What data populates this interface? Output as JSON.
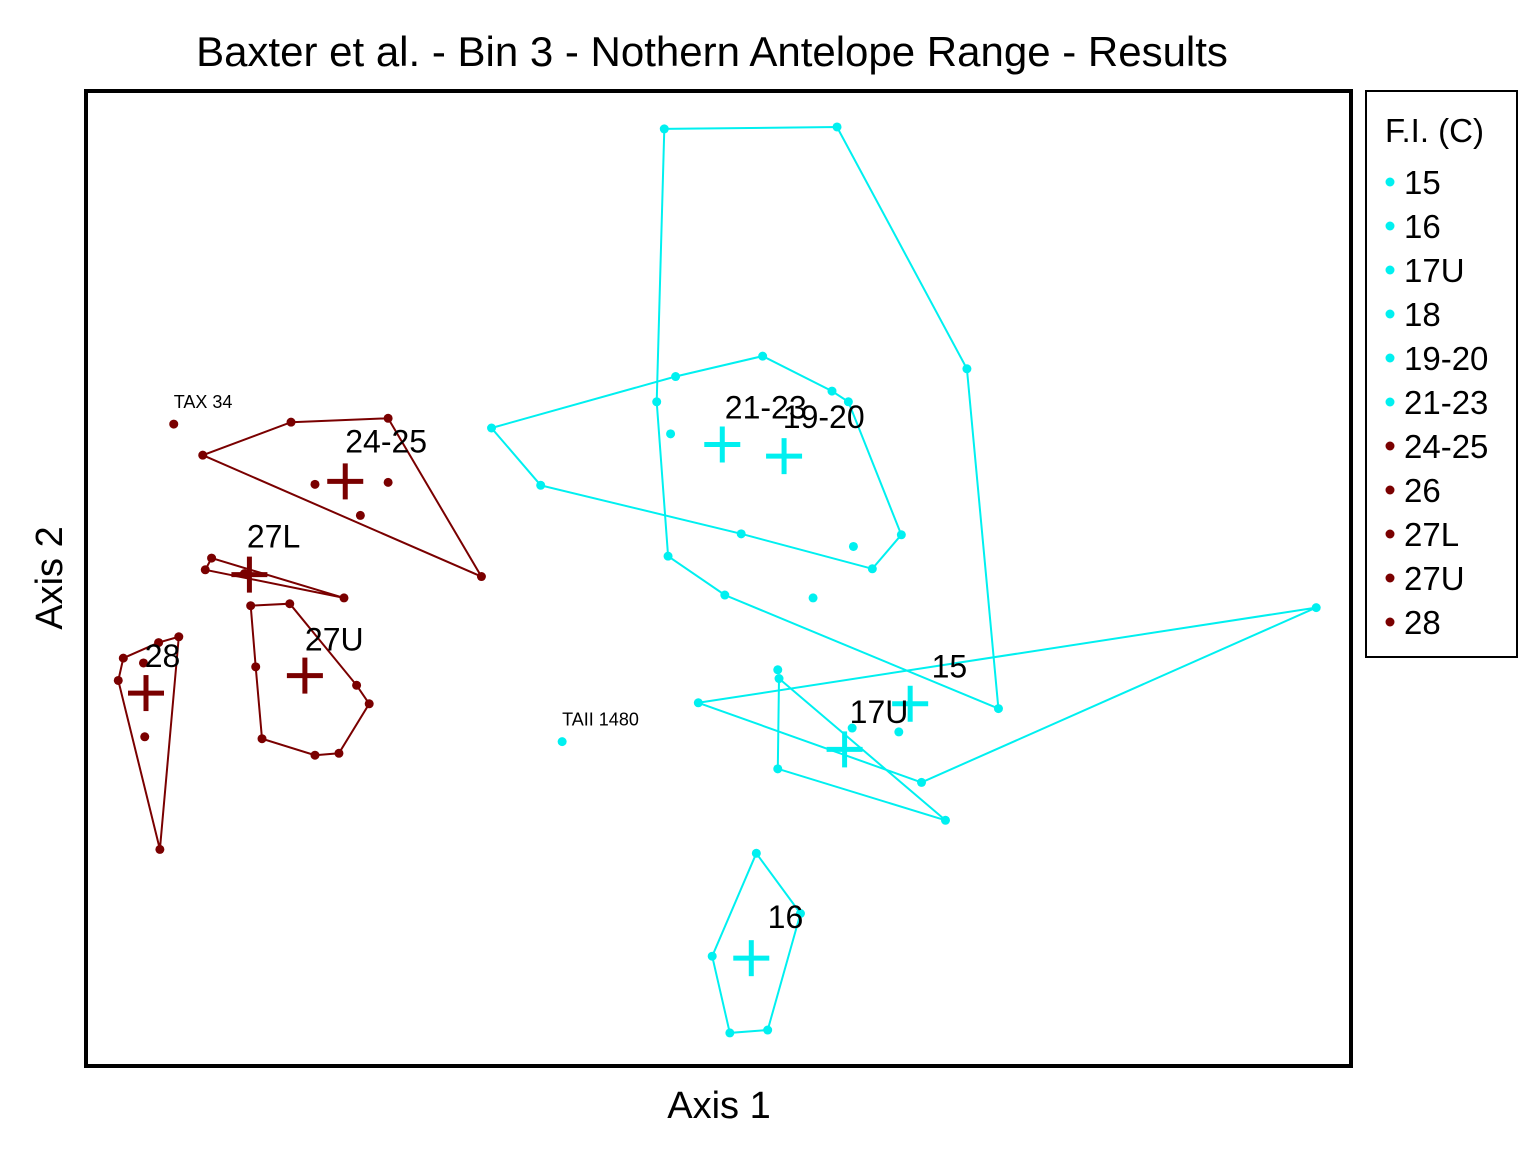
{
  "chart_data": {
    "type": "scatter",
    "title": "Baxter et al. - Bin 3 - Nothern Antelope Range - Results",
    "xlabel": "Axis 1",
    "ylabel": "Axis 2",
    "xlim": [
      0,
      1000
    ],
    "ylim": [
      0,
      1000
    ],
    "grid": false,
    "legend": {
      "title": "F.I. (C)",
      "placement": "right",
      "entries": [
        {
          "label": "15",
          "color": "#00f0f0"
        },
        {
          "label": "16",
          "color": "#00f0f0"
        },
        {
          "label": "17U",
          "color": "#00f0f0"
        },
        {
          "label": "18",
          "color": "#00f0f0"
        },
        {
          "label": "19-20",
          "color": "#00f0f0"
        },
        {
          "label": "21-23",
          "color": "#00f0f0"
        },
        {
          "label": "24-25",
          "color": "#7a0000"
        },
        {
          "label": "26",
          "color": "#7a0000"
        },
        {
          "label": "27L",
          "color": "#7a0000"
        },
        {
          "label": "27U",
          "color": "#7a0000"
        },
        {
          "label": "28",
          "color": "#7a0000"
        }
      ]
    },
    "groups": [
      {
        "label": "15",
        "color": "#00f0f0",
        "centroid": [
          652,
          371
        ],
        "label_at": [
          669,
          398
        ],
        "points": [
          [
            484,
            372
          ],
          [
            974,
            470
          ],
          [
            661,
            290
          ],
          [
            547,
            406
          ]
        ],
        "hull": [
          [
            484,
            372
          ],
          [
            974,
            470
          ],
          [
            661,
            290
          ]
        ]
      },
      {
        "label": "16",
        "color": "#00f0f0",
        "centroid": [
          526,
          109
        ],
        "label_at": [
          539,
          140
        ],
        "points": [
          [
            530,
            217
          ],
          [
            565,
            155
          ],
          [
            495,
            111
          ],
          [
            509,
            32
          ],
          [
            539,
            35
          ]
        ],
        "hull": [
          [
            530,
            217
          ],
          [
            565,
            155
          ],
          [
            539,
            35
          ],
          [
            509,
            32
          ],
          [
            495,
            111
          ]
        ]
      },
      {
        "label": "17U",
        "color": "#00f0f0",
        "centroid": [
          600,
          324
        ],
        "label_at": [
          604,
          351
        ],
        "points": [
          [
            548,
            397
          ],
          [
            643,
            342
          ],
          [
            547,
            304
          ],
          [
            680,
            251
          ],
          [
            606,
            346
          ]
        ],
        "hull": [
          [
            548,
            397
          ],
          [
            680,
            251
          ],
          [
            547,
            304
          ]
        ]
      },
      {
        "label": "19-20",
        "color": "#00f0f0",
        "centroid": [
          552,
          626
        ],
        "label_at": [
          551,
          655
        ],
        "points": [
          [
            320,
            655
          ],
          [
            359,
            596
          ],
          [
            466,
            708
          ],
          [
            535,
            729
          ],
          [
            590,
            693
          ],
          [
            603,
            682
          ],
          [
            645,
            545
          ],
          [
            622,
            510
          ],
          [
            518,
            546
          ],
          [
            462,
            649
          ],
          [
            607,
            533
          ],
          [
            575,
            480
          ]
        ],
        "hull": [
          [
            320,
            655
          ],
          [
            466,
            708
          ],
          [
            535,
            729
          ],
          [
            590,
            693
          ],
          [
            603,
            682
          ],
          [
            645,
            545
          ],
          [
            622,
            510
          ],
          [
            518,
            546
          ],
          [
            359,
            596
          ]
        ]
      },
      {
        "label": "21-23",
        "color": "#00f0f0",
        "centroid": [
          503,
          638
        ],
        "label_at": [
          505,
          665
        ],
        "points": [
          [
            457,
            963
          ],
          [
            594,
            965
          ],
          [
            697,
            716
          ],
          [
            722,
            366
          ],
          [
            460,
            523
          ],
          [
            505,
            483
          ],
          [
            451,
            682
          ]
        ],
        "hull": [
          [
            457,
            963
          ],
          [
            594,
            965
          ],
          [
            697,
            716
          ],
          [
            722,
            366
          ],
          [
            505,
            483
          ],
          [
            460,
            523
          ],
          [
            451,
            682
          ]
        ]
      },
      {
        "label": "24-25",
        "color": "#7a0000",
        "centroid": [
          204,
          600
        ],
        "label_at": [
          204,
          630
        ],
        "points": [
          [
            91,
            627
          ],
          [
            161,
            661
          ],
          [
            238,
            665
          ],
          [
            312,
            502
          ],
          [
            180,
            597
          ],
          [
            238,
            599
          ],
          [
            216,
            565
          ]
        ],
        "hull": [
          [
            91,
            627
          ],
          [
            161,
            661
          ],
          [
            238,
            665
          ],
          [
            312,
            502
          ]
        ]
      },
      {
        "label": "27L",
        "color": "#7a0000",
        "centroid": [
          128,
          504
        ],
        "label_at": [
          126,
          532
        ],
        "points": [
          [
            93,
            509
          ],
          [
            98,
            521
          ],
          [
            203,
            480
          ],
          [
            124,
            505
          ]
        ],
        "hull": [
          [
            93,
            509
          ],
          [
            98,
            521
          ],
          [
            203,
            480
          ]
        ]
      },
      {
        "label": "27U",
        "color": "#7a0000",
        "centroid": [
          172,
          400
        ],
        "label_at": [
          172,
          426
        ],
        "points": [
          [
            129,
            472
          ],
          [
            160,
            474
          ],
          [
            133,
            409
          ],
          [
            138,
            335
          ],
          [
            180,
            318
          ],
          [
            199,
            320
          ],
          [
            213,
            390
          ],
          [
            223,
            371
          ]
        ],
        "hull": [
          [
            129,
            472
          ],
          [
            160,
            474
          ],
          [
            213,
            390
          ],
          [
            223,
            371
          ],
          [
            199,
            320
          ],
          [
            180,
            318
          ],
          [
            138,
            335
          ],
          [
            133,
            409
          ]
        ]
      },
      {
        "label": "28",
        "color": "#7a0000",
        "centroid": [
          46,
          382
        ],
        "label_at": [
          45,
          409
        ],
        "points": [
          [
            24,
            395
          ],
          [
            28,
            418
          ],
          [
            56,
            434
          ],
          [
            72,
            440
          ],
          [
            44,
            413
          ],
          [
            45,
            337
          ],
          [
            57,
            221
          ]
        ],
        "hull": [
          [
            24,
            395
          ],
          [
            28,
            418
          ],
          [
            56,
            434
          ],
          [
            72,
            440
          ],
          [
            57,
            221
          ]
        ]
      }
    ],
    "outliers": [
      {
        "label": "TAX 34",
        "point": [
          68,
          659
        ],
        "color": "#7a0000"
      },
      {
        "label": "TAII 1480",
        "point": [
          376,
          332
        ],
        "color": "#00f0f0"
      }
    ]
  }
}
